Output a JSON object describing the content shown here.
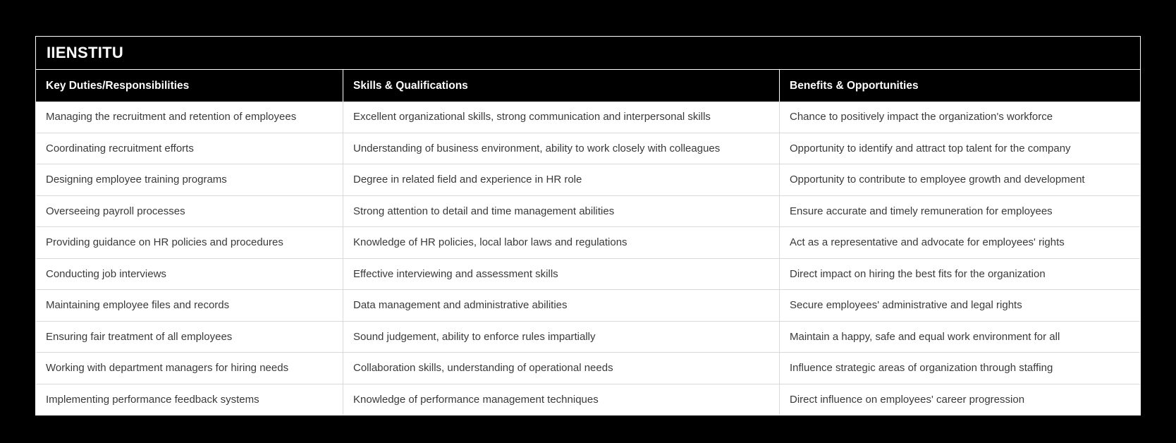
{
  "brand": {
    "title": "IIENSTITU"
  },
  "colors": {
    "page_bg": "#000000",
    "band_bg": "#000000",
    "band_text": "#ffffff",
    "row_bg": "#ffffff",
    "body_text": "#3a3a3a",
    "grid_line": "#d9d9d9",
    "header_divider": "#ffffff"
  },
  "chart_data": {
    "type": "table",
    "title": "IIENSTITU",
    "columns": [
      "Key Duties/Responsibilities",
      "Skills & Qualifications",
      "Benefits & Opportunities"
    ],
    "rows": [
      [
        "Managing the recruitment and retention of employees",
        "Excellent organizational skills, strong communication and interpersonal skills",
        "Chance to positively impact the organization's workforce"
      ],
      [
        "Coordinating recruitment efforts",
        "Understanding of business environment, ability to work closely with colleagues",
        "Opportunity to identify and attract top talent for the company"
      ],
      [
        "Designing employee training programs",
        "Degree in related field and experience in HR role",
        "Opportunity to contribute to employee growth and development"
      ],
      [
        "Overseeing payroll processes",
        "Strong attention to detail and time management abilities",
        "Ensure accurate and timely remuneration for employees"
      ],
      [
        "Providing guidance on HR policies and procedures",
        "Knowledge of HR policies, local labor laws and regulations",
        "Act as a representative and advocate for employees' rights"
      ],
      [
        "Conducting job interviews",
        "Effective interviewing and assessment skills",
        "Direct impact on hiring the best fits for the organization"
      ],
      [
        "Maintaining employee files and records",
        "Data management and administrative abilities",
        "Secure employees' administrative and legal rights"
      ],
      [
        "Ensuring fair treatment of all employees",
        "Sound judgement, ability to enforce rules impartially",
        "Maintain a happy, safe and equal work environment for all"
      ],
      [
        "Working with department managers for hiring needs",
        "Collaboration skills, understanding of operational needs",
        "Influence strategic areas of organization through staffing"
      ],
      [
        "Implementing performance feedback systems",
        "Knowledge of performance management techniques",
        "Direct influence on employees' career progression"
      ]
    ]
  }
}
